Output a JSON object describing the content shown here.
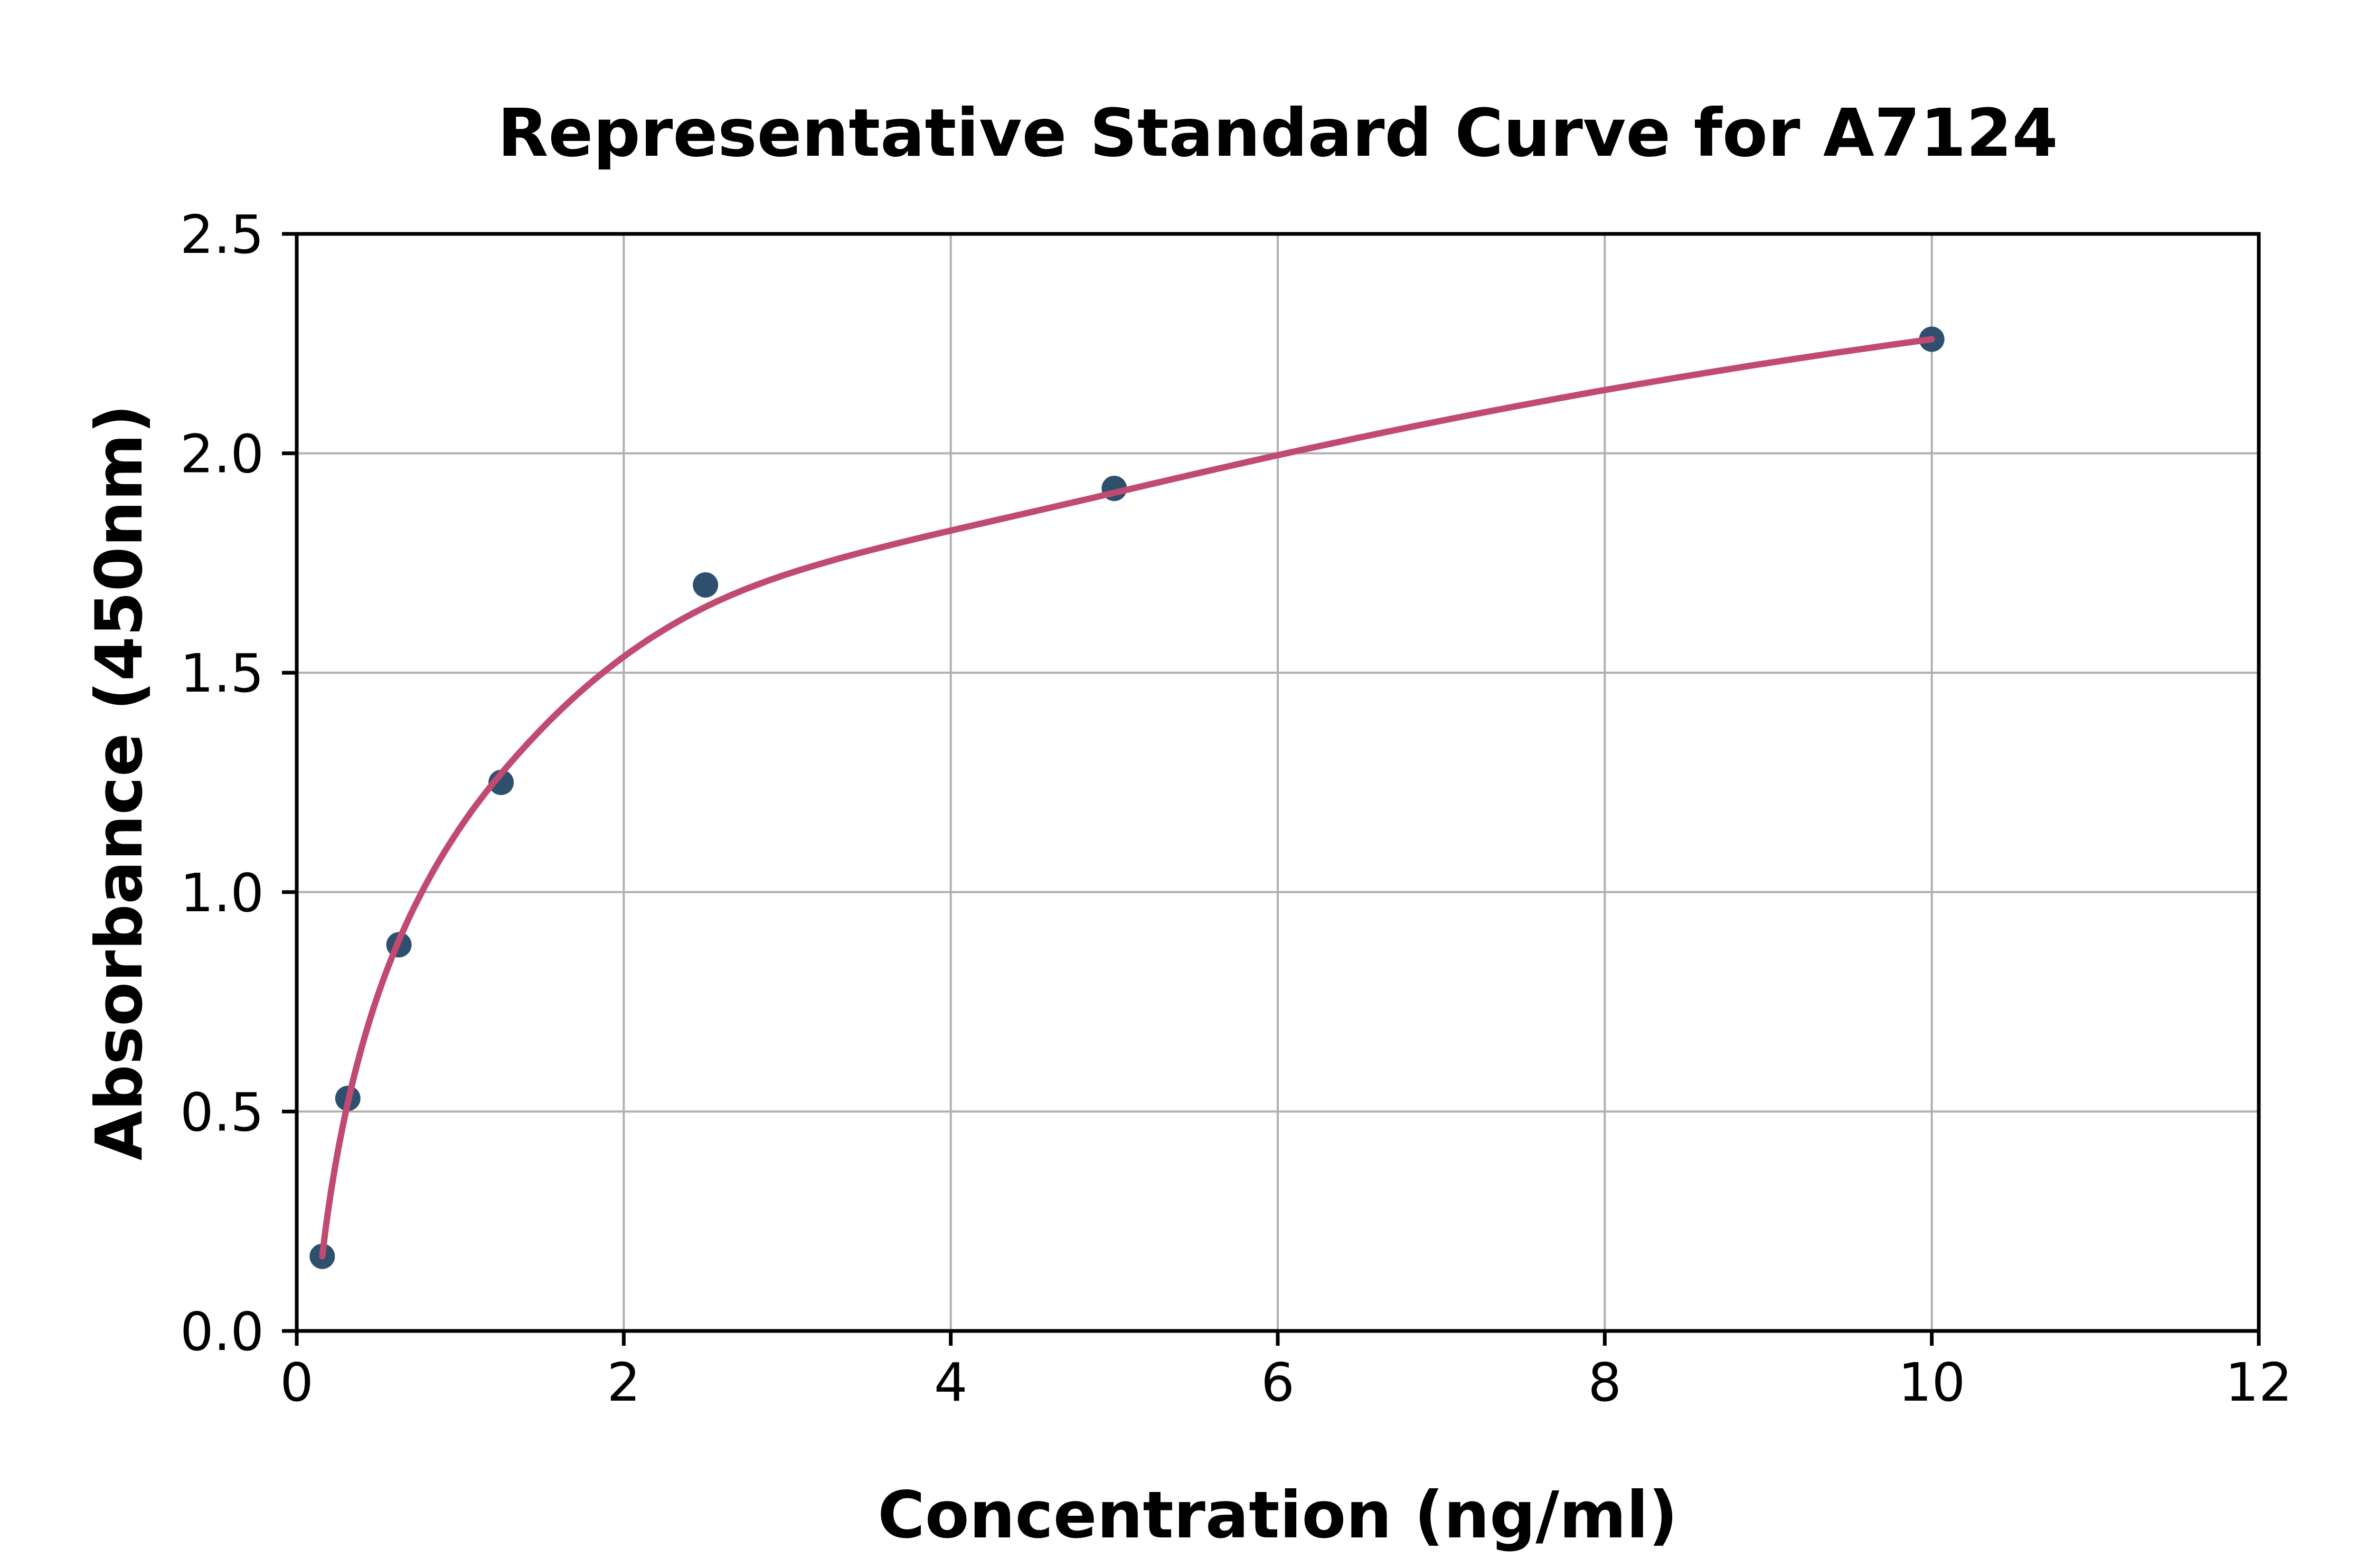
{
  "chart_data": {
    "type": "scatter",
    "title": "Representative Standard Curve for A7124",
    "xlabel": "Concentration (ng/ml)",
    "ylabel": "Absorbance (450nm)",
    "xlim": [
      0,
      12
    ],
    "ylim": [
      0,
      2.5
    ],
    "x_ticks": [
      0,
      2,
      4,
      6,
      8,
      10,
      12
    ],
    "x_tick_labels": [
      "0",
      "2",
      "4",
      "6",
      "8",
      "10",
      "12"
    ],
    "y_ticks": [
      0,
      0.5,
      1.0,
      1.5,
      2.0,
      2.5
    ],
    "y_tick_labels": [
      "0.0",
      "0.5",
      "1.0",
      "1.5",
      "2.0",
      "2.5"
    ],
    "grid": true,
    "legend": "none",
    "series": [
      {
        "name": "standards",
        "marker": "circle",
        "points": [
          {
            "concentration_ng_ml": 0.156,
            "absorbance_450nm": 0.17
          },
          {
            "concentration_ng_ml": 0.3125,
            "absorbance_450nm": 0.53
          },
          {
            "concentration_ng_ml": 0.625,
            "absorbance_450nm": 0.88
          },
          {
            "concentration_ng_ml": 1.25,
            "absorbance_450nm": 1.25
          },
          {
            "concentration_ng_ml": 2.5,
            "absorbance_450nm": 1.7
          },
          {
            "concentration_ng_ml": 5,
            "absorbance_450nm": 1.92
          },
          {
            "concentration_ng_ml": 10,
            "absorbance_450nm": 2.26
          }
        ]
      }
    ],
    "fit_curve": {
      "name": "4-parameter-fit",
      "x_scale_for_smoothing": "log2",
      "x_range": [
        0.156,
        10
      ],
      "anchors": [
        [
          0.156,
          0.17
        ],
        [
          0.3125,
          0.52
        ],
        [
          0.625,
          0.89
        ],
        [
          1.25,
          1.27
        ],
        [
          2.5,
          1.65
        ],
        [
          5,
          1.91
        ],
        [
          10,
          2.26
        ]
      ]
    },
    "colors": {
      "marker": "#2e506e",
      "curve": "#c04a70",
      "grid": "#b0b0b0",
      "axis": "#000000",
      "text": "#000000",
      "background": "#ffffff"
    }
  }
}
